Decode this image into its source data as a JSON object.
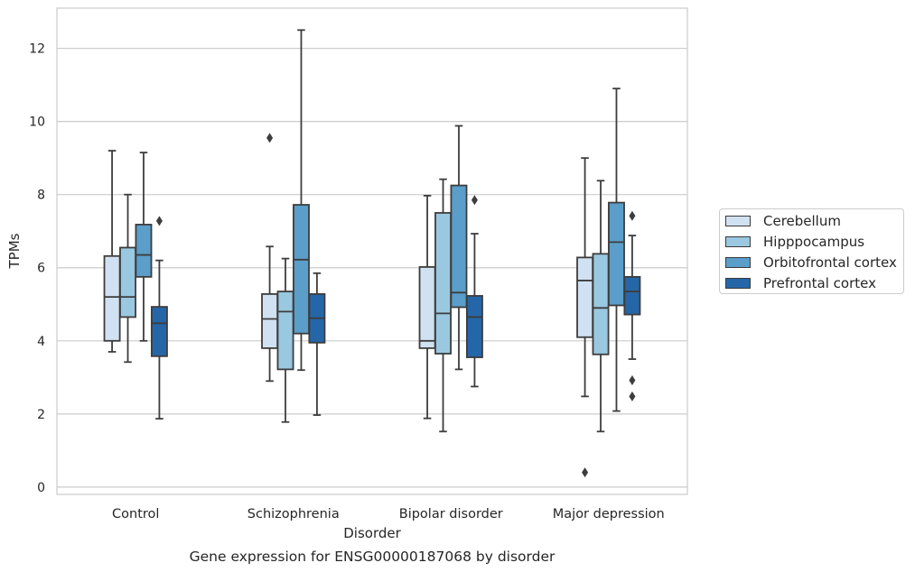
{
  "chart_data": {
    "type": "box",
    "xlabel": "Disorder",
    "ylabel": "TPMs",
    "caption": "Gene expression for ENSG00000187068 by disorder",
    "categories": [
      "Control",
      "Schizophrenia",
      "Bipolar disorder",
      "Major depression"
    ],
    "ylim": [
      -0.2,
      13.1
    ],
    "yticks": [
      0,
      2,
      4,
      6,
      8,
      10,
      12
    ],
    "grid": "y",
    "legend_position": "right",
    "series": [
      {
        "name": "Cerebellum",
        "color": "#d0e1f2",
        "boxes": [
          {
            "whislo": 3.7,
            "q1": 4.0,
            "med": 5.2,
            "q3": 6.32,
            "whishi": 9.2,
            "fliers": []
          },
          {
            "whislo": 2.9,
            "q1": 3.8,
            "med": 4.6,
            "q3": 5.28,
            "whishi": 6.58,
            "fliers": [
              9.55
            ]
          },
          {
            "whislo": 1.88,
            "q1": 3.8,
            "med": 4.0,
            "q3": 6.02,
            "whishi": 7.97,
            "fliers": []
          },
          {
            "whislo": 2.48,
            "q1": 4.1,
            "med": 5.65,
            "q3": 6.28,
            "whishi": 9.0,
            "fliers": [
              0.4
            ]
          }
        ]
      },
      {
        "name": "Hipppocampus",
        "color": "#9ac8e0",
        "boxes": [
          {
            "whislo": 3.42,
            "q1": 4.65,
            "med": 5.2,
            "q3": 6.55,
            "whishi": 8.0,
            "fliers": []
          },
          {
            "whislo": 1.78,
            "q1": 3.22,
            "med": 4.8,
            "q3": 5.35,
            "whishi": 6.25,
            "fliers": []
          },
          {
            "whislo": 1.52,
            "q1": 3.65,
            "med": 4.75,
            "q3": 7.5,
            "whishi": 8.42,
            "fliers": []
          },
          {
            "whislo": 1.52,
            "q1": 3.63,
            "med": 4.9,
            "q3": 6.38,
            "whishi": 8.38,
            "fliers": []
          }
        ]
      },
      {
        "name": "Orbitofrontal cortex",
        "color": "#5a9ec9",
        "boxes": [
          {
            "whislo": 4.0,
            "q1": 5.75,
            "med": 6.35,
            "q3": 7.18,
            "whishi": 9.15,
            "fliers": []
          },
          {
            "whislo": 3.2,
            "q1": 4.2,
            "med": 6.22,
            "q3": 7.72,
            "whishi": 12.5,
            "fliers": []
          },
          {
            "whislo": 3.22,
            "q1": 4.92,
            "med": 5.32,
            "q3": 8.25,
            "whishi": 9.88,
            "fliers": []
          },
          {
            "whislo": 2.08,
            "q1": 4.97,
            "med": 6.7,
            "q3": 7.78,
            "whishi": 10.9,
            "fliers": []
          }
        ]
      },
      {
        "name": "Prefrontal cortex",
        "color": "#2566a8",
        "boxes": [
          {
            "whislo": 1.87,
            "q1": 3.58,
            "med": 4.48,
            "q3": 4.93,
            "whishi": 6.2,
            "fliers": [
              7.28
            ]
          },
          {
            "whislo": 1.97,
            "q1": 3.95,
            "med": 4.62,
            "q3": 5.28,
            "whishi": 5.85,
            "fliers": []
          },
          {
            "whislo": 2.75,
            "q1": 3.55,
            "med": 4.65,
            "q3": 5.23,
            "whishi": 6.93,
            "fliers": [
              7.85
            ]
          },
          {
            "whislo": 3.5,
            "q1": 4.72,
            "med": 5.35,
            "q3": 5.75,
            "whishi": 6.88,
            "fliers": [
              7.42,
              2.92,
              2.48
            ]
          }
        ]
      }
    ]
  }
}
